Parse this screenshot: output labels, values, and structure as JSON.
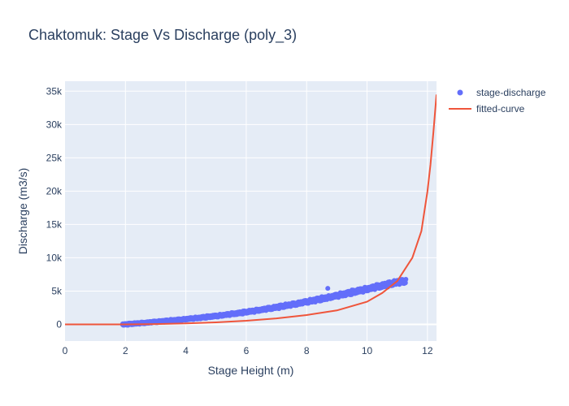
{
  "chart_data": {
    "type": "scatter",
    "title": "Chaktomuk: Stage Vs Discharge (poly_3)",
    "xlabel": "Stage Height (m)",
    "ylabel": "Discharge (m3/s)",
    "xlim": [
      0,
      12.3
    ],
    "ylim": [
      -2500,
      36500
    ],
    "x_ticks": [
      0,
      2,
      4,
      6,
      8,
      10,
      12
    ],
    "x_tick_labels": [
      "0",
      "2",
      "4",
      "6",
      "8",
      "10",
      "12"
    ],
    "y_ticks": [
      0,
      5000,
      10000,
      15000,
      20000,
      25000,
      30000,
      35000
    ],
    "y_tick_labels": [
      "0",
      "5k",
      "10k",
      "15k",
      "20k",
      "25k",
      "30k",
      "35k"
    ],
    "grid": true,
    "legend_position": "top-right",
    "colors": {
      "scatter": "#636efa",
      "line": "#ef553b",
      "plot_bg": "#e5ecf6"
    },
    "series": [
      {
        "name": "stage-discharge",
        "type": "scatter",
        "x": [
          2.0,
          2.2,
          2.4,
          2.6,
          2.8,
          3.0,
          3.2,
          3.4,
          3.6,
          3.8,
          4.0,
          4.2,
          4.4,
          4.6,
          4.8,
          5.0,
          5.2,
          5.4,
          5.6,
          5.8,
          6.0,
          6.2,
          6.4,
          6.6,
          6.8,
          7.0,
          7.2,
          7.4,
          7.6,
          7.8,
          8.0,
          8.2,
          8.4,
          8.6,
          8.7,
          8.8,
          9.0,
          9.2,
          9.4,
          9.6,
          9.8,
          10.0,
          10.2,
          10.4,
          10.6,
          10.8,
          11.0,
          11.2
        ],
        "y": [
          0,
          80,
          150,
          220,
          300,
          380,
          460,
          540,
          620,
          700,
          780,
          870,
          960,
          1060,
          1160,
          1260,
          1370,
          1480,
          1600,
          1720,
          1850,
          1980,
          2120,
          2260,
          2400,
          2560,
          2720,
          2880,
          3040,
          3210,
          3380,
          3560,
          3740,
          3920,
          5400,
          4100,
          4300,
          4500,
          4700,
          4900,
          5100,
          5300,
          5500,
          5700,
          5900,
          6100,
          6300,
          6450
        ]
      },
      {
        "name": "fitted-curve",
        "type": "line",
        "x": [
          0,
          1,
          2,
          3,
          4,
          5,
          6,
          7,
          8,
          9,
          10,
          10.5,
          11,
          11.5,
          11.8,
          12.0,
          12.1,
          12.2,
          12.3
        ],
        "y": [
          0,
          0,
          0,
          50,
          150,
          300,
          550,
          900,
          1400,
          2100,
          3400,
          4700,
          6500,
          10000,
          14000,
          20000,
          24000,
          29000,
          34500
        ]
      }
    ]
  }
}
